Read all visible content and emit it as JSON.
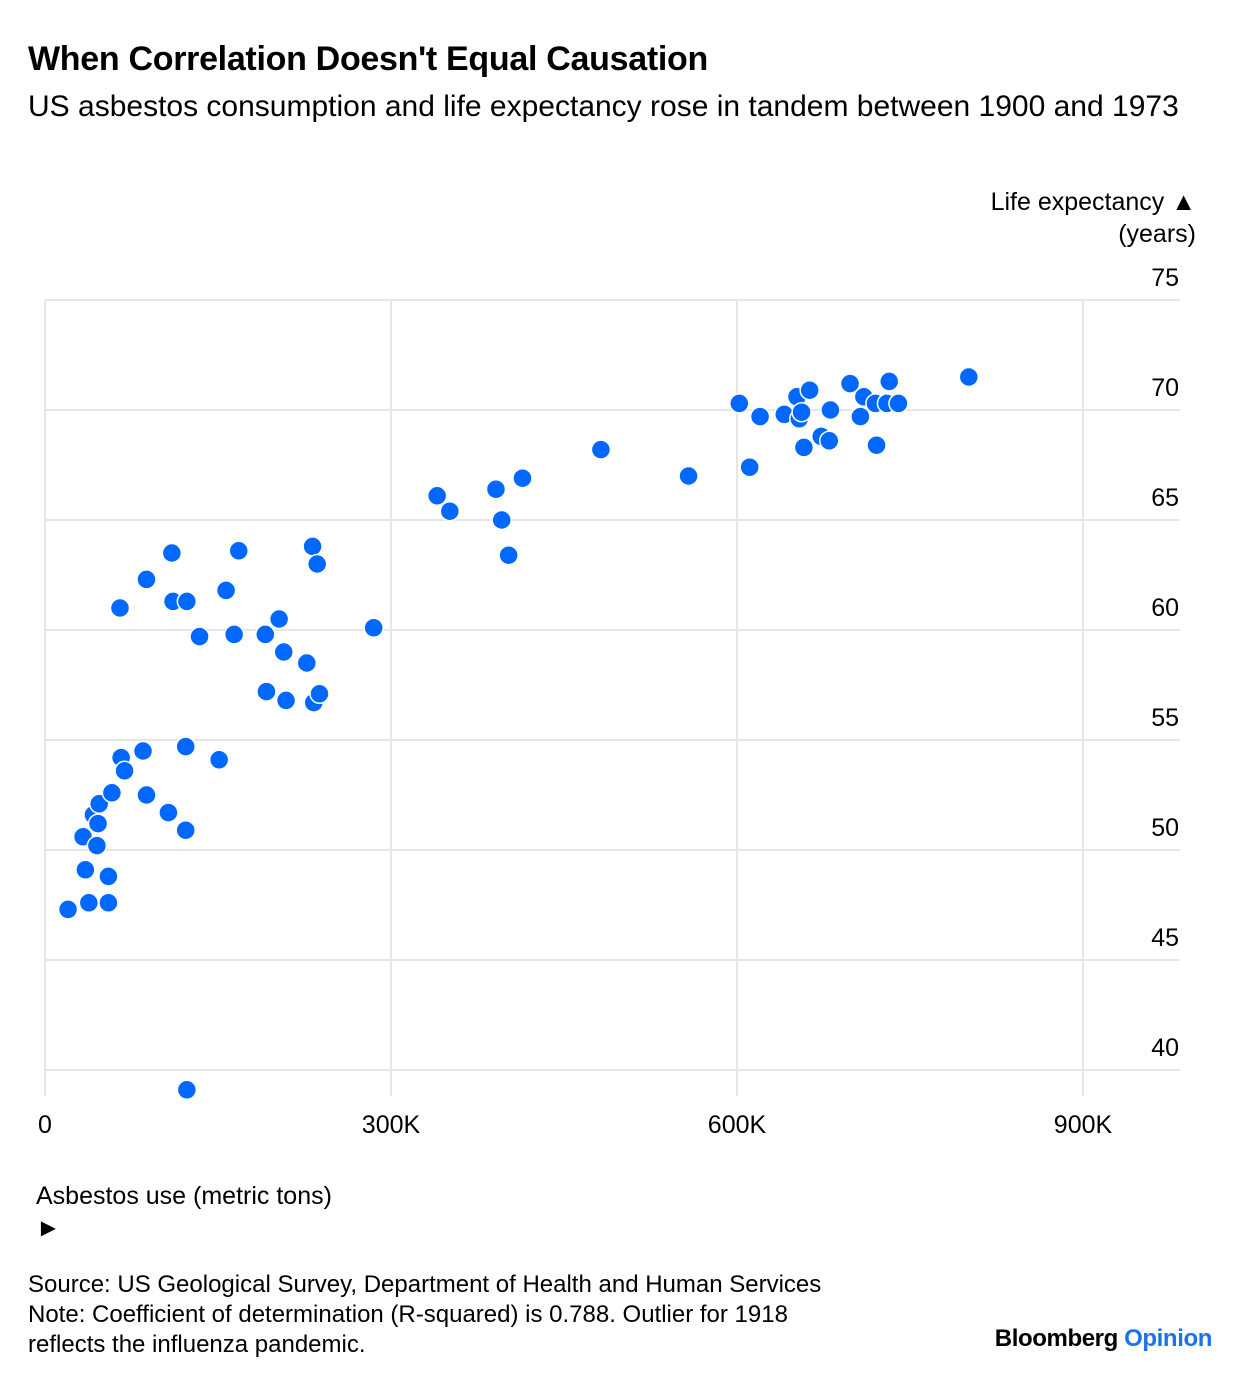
{
  "title": "When Correlation Doesn't Equal Causation",
  "subtitle": "US asbestos consumption and life expectancy rose in tandem between 1900 and 1973",
  "footer": {
    "source": "Source: US Geological Survey, Department of Health and Human Services",
    "note_line1": "Note: Coefficient of determination (R-squared) is 0.788. Outlier for 1918",
    "note_line2": "reflects the influenza pandemic."
  },
  "brand": {
    "bloomberg": "Bloomberg",
    "opinion": "Opinion"
  },
  "colors": {
    "point": "#0068ff",
    "grid": "#e6e6e6"
  },
  "chart_data": {
    "type": "scatter",
    "xlabel": "Asbestos use (metric tons) ►",
    "ylabel_line1": "Life expectancy ▲",
    "ylabel_line2": "(years)",
    "xlim": [
      0,
      950000
    ],
    "ylim": [
      39,
      75
    ],
    "xticks": [
      {
        "value": 0,
        "label": "0"
      },
      {
        "value": 300000,
        "label": "300K"
      },
      {
        "value": 600000,
        "label": "600K"
      },
      {
        "value": 900000,
        "label": "900K"
      }
    ],
    "yticks": [
      {
        "value": 75,
        "label": "75"
      },
      {
        "value": 70,
        "label": "70"
      },
      {
        "value": 65,
        "label": "65"
      },
      {
        "value": 60,
        "label": "60"
      },
      {
        "value": 55,
        "label": "55"
      },
      {
        "value": 50,
        "label": "50"
      },
      {
        "value": 45,
        "label": "45"
      },
      {
        "value": 40,
        "label": "40"
      }
    ],
    "grid": true,
    "points": [
      {
        "x": 20000,
        "y": 47.3
      },
      {
        "x": 33000,
        "y": 50.6
      },
      {
        "x": 35000,
        "y": 49.1
      },
      {
        "x": 38000,
        "y": 47.6
      },
      {
        "x": 42000,
        "y": 51.6
      },
      {
        "x": 45000,
        "y": 50.2
      },
      {
        "x": 46000,
        "y": 51.2
      },
      {
        "x": 47000,
        "y": 52.1
      },
      {
        "x": 55000,
        "y": 47.6
      },
      {
        "x": 55000,
        "y": 48.8
      },
      {
        "x": 58000,
        "y": 52.6
      },
      {
        "x": 65000,
        "y": 61.0
      },
      {
        "x": 66000,
        "y": 54.2
      },
      {
        "x": 69000,
        "y": 53.6
      },
      {
        "x": 85000,
        "y": 54.5
      },
      {
        "x": 88000,
        "y": 62.3
      },
      {
        "x": 88000,
        "y": 52.5
      },
      {
        "x": 107000,
        "y": 51.7
      },
      {
        "x": 110000,
        "y": 63.5
      },
      {
        "x": 111000,
        "y": 61.3
      },
      {
        "x": 122000,
        "y": 54.7
      },
      {
        "x": 122000,
        "y": 50.9
      },
      {
        "x": 123000,
        "y": 39.1
      },
      {
        "x": 123000,
        "y": 61.3
      },
      {
        "x": 134000,
        "y": 59.7
      },
      {
        "x": 151000,
        "y": 54.1
      },
      {
        "x": 157000,
        "y": 61.8
      },
      {
        "x": 164000,
        "y": 59.8
      },
      {
        "x": 168000,
        "y": 63.6
      },
      {
        "x": 191000,
        "y": 59.8
      },
      {
        "x": 192000,
        "y": 57.2
      },
      {
        "x": 203000,
        "y": 60.5
      },
      {
        "x": 207000,
        "y": 59.0
      },
      {
        "x": 209000,
        "y": 56.8
      },
      {
        "x": 227000,
        "y": 58.5
      },
      {
        "x": 232000,
        "y": 63.8
      },
      {
        "x": 233000,
        "y": 56.7
      },
      {
        "x": 236000,
        "y": 63.0
      },
      {
        "x": 238000,
        "y": 57.1
      },
      {
        "x": 285000,
        "y": 60.1
      },
      {
        "x": 340000,
        "y": 66.1
      },
      {
        "x": 351000,
        "y": 65.4
      },
      {
        "x": 391000,
        "y": 66.4
      },
      {
        "x": 396000,
        "y": 65.0
      },
      {
        "x": 402000,
        "y": 63.4
      },
      {
        "x": 414000,
        "y": 66.9
      },
      {
        "x": 482000,
        "y": 68.2
      },
      {
        "x": 558000,
        "y": 67.0
      },
      {
        "x": 602000,
        "y": 70.3
      },
      {
        "x": 611000,
        "y": 67.4
      },
      {
        "x": 620000,
        "y": 69.7
      },
      {
        "x": 641000,
        "y": 69.8
      },
      {
        "x": 652000,
        "y": 70.6
      },
      {
        "x": 654000,
        "y": 69.6
      },
      {
        "x": 656000,
        "y": 69.9
      },
      {
        "x": 658000,
        "y": 68.3
      },
      {
        "x": 663000,
        "y": 70.9
      },
      {
        "x": 673000,
        "y": 68.8
      },
      {
        "x": 680000,
        "y": 68.6
      },
      {
        "x": 681000,
        "y": 70.0
      },
      {
        "x": 698000,
        "y": 71.2
      },
      {
        "x": 707000,
        "y": 69.7
      },
      {
        "x": 710000,
        "y": 70.6
      },
      {
        "x": 720000,
        "y": 70.3
      },
      {
        "x": 721000,
        "y": 68.4
      },
      {
        "x": 730000,
        "y": 70.3
      },
      {
        "x": 732000,
        "y": 71.3
      },
      {
        "x": 740000,
        "y": 70.3
      },
      {
        "x": 801000,
        "y": 71.5
      }
    ]
  }
}
